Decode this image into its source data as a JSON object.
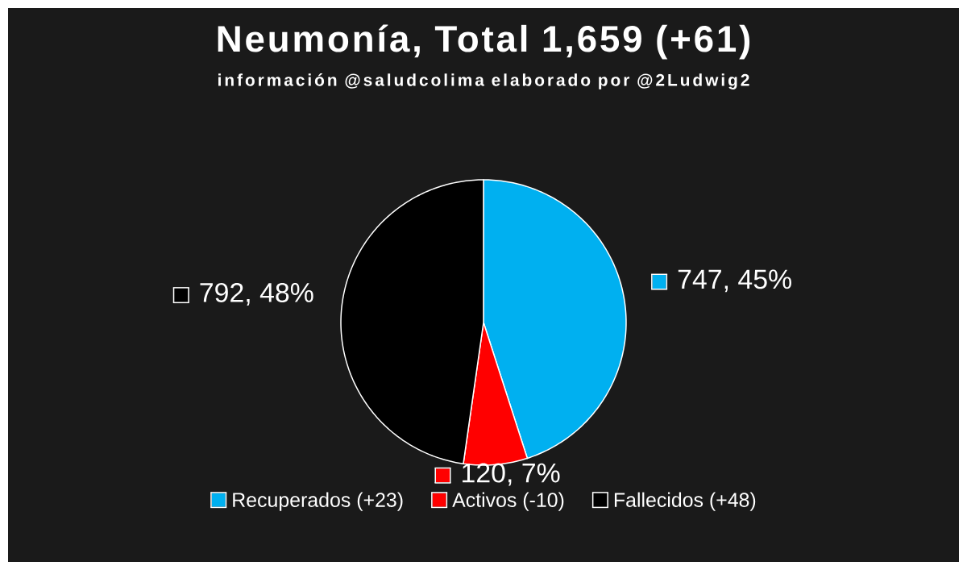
{
  "chart_data": {
    "type": "pie",
    "title": "Neumonía, Total 1,659 (+61)",
    "subtitle": "información @saludcolima elaborado por @2Ludwig2",
    "categories": [
      "Recuperados (+23)",
      "Activos (-10)",
      "Fallecidos (+48)"
    ],
    "values": [
      747,
      120,
      792
    ],
    "colors": [
      "#00b0f0",
      "#ff0000",
      "#000000"
    ],
    "value_labels": [
      "747, 45%",
      "120, 7%",
      "792, 48%"
    ],
    "legend": "bottom"
  }
}
